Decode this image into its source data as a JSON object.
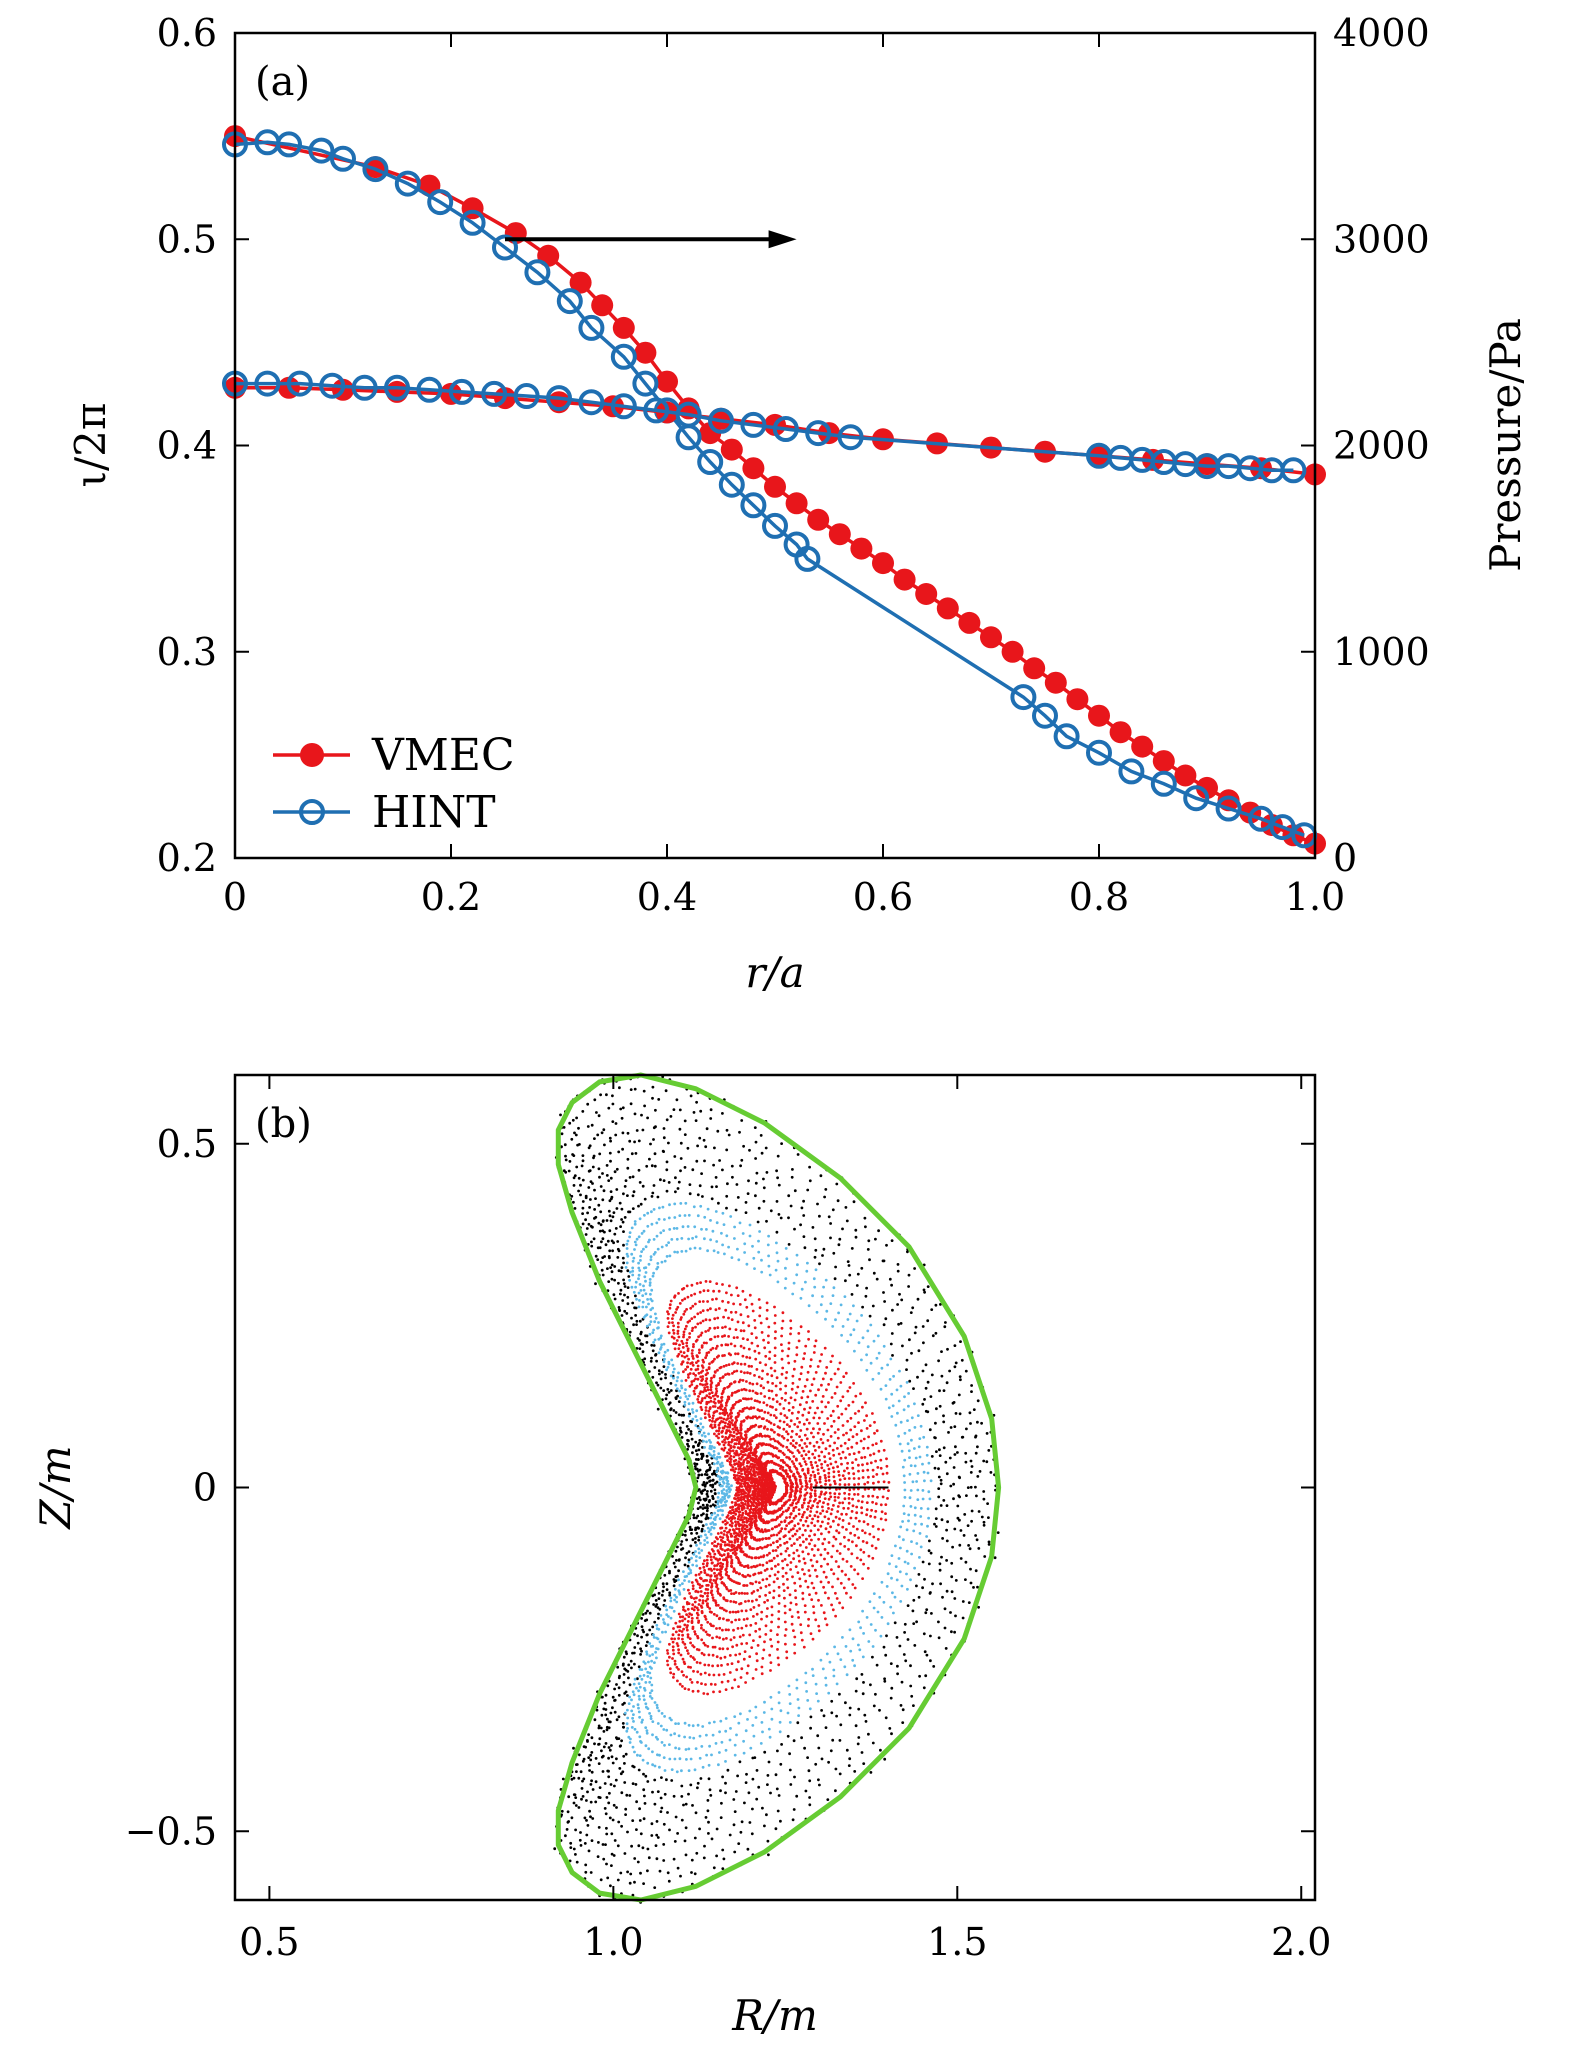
{
  "chart_data": [
    {
      "panel": "(a)",
      "type": "line",
      "xlabel": "r/a",
      "ylabel": "ι/2π",
      "y2label": "Pressure/Pa",
      "xlim": [
        0,
        1.0
      ],
      "ylim": [
        0.2,
        0.6
      ],
      "y2lim": [
        0,
        4000
      ],
      "xticks": [
        "0",
        "0.2",
        "0.4",
        "0.6",
        "0.8",
        "1.0"
      ],
      "yticks": [
        "0.2",
        "0.3",
        "0.4",
        "0.5",
        "0.6"
      ],
      "y2ticks": [
        "0",
        "1000",
        "2000",
        "3000",
        "4000"
      ],
      "legend": {
        "position": "lower-left",
        "entries": [
          "VMEC",
          "HINT"
        ]
      },
      "colors": {
        "VMEC": "#e8161b",
        "HINT": "#1f6fb2"
      },
      "arrow": {
        "from": [
          0.25,
          3000
        ],
        "to": [
          0.52,
          3000
        ],
        "axis": "right"
      },
      "series": [
        {
          "name": "VMEC",
          "quantity": "pressure",
          "axis": "right",
          "x": [
            0.0,
            0.13,
            0.18,
            0.22,
            0.26,
            0.29,
            0.32,
            0.34,
            0.36,
            0.38,
            0.4,
            0.42,
            0.44,
            0.46,
            0.48,
            0.5,
            0.52,
            0.54,
            0.56,
            0.58,
            0.6,
            0.62,
            0.64,
            0.66,
            0.68,
            0.7,
            0.72,
            0.74,
            0.76,
            0.78,
            0.8,
            0.82,
            0.84,
            0.86,
            0.88,
            0.9,
            0.92,
            0.94,
            0.96,
            0.98,
            1.0
          ],
          "y": [
            3500,
            3350,
            3260,
            3150,
            3030,
            2920,
            2790,
            2680,
            2570,
            2450,
            2310,
            2180,
            2060,
            1980,
            1890,
            1800,
            1720,
            1640,
            1570,
            1500,
            1430,
            1350,
            1280,
            1210,
            1140,
            1070,
            1000,
            920,
            850,
            770,
            690,
            610,
            540,
            470,
            400,
            340,
            280,
            220,
            160,
            110,
            70
          ]
        },
        {
          "name": "HINT",
          "quantity": "pressure",
          "axis": "right",
          "x": [
            0.0,
            0.03,
            0.05,
            0.08,
            0.1,
            0.13,
            0.16,
            0.19,
            0.22,
            0.25,
            0.28,
            0.31,
            0.33,
            0.36,
            0.38,
            0.4,
            0.42,
            0.44,
            0.46,
            0.48,
            0.5,
            0.52,
            0.53,
            0.73,
            0.75,
            0.77,
            0.8,
            0.83,
            0.86,
            0.89,
            0.92,
            0.95,
            0.97,
            0.99
          ],
          "y": [
            3460,
            3470,
            3460,
            3430,
            3390,
            3340,
            3270,
            3180,
            3080,
            2960,
            2840,
            2700,
            2570,
            2430,
            2300,
            2170,
            2040,
            1920,
            1810,
            1710,
            1610,
            1520,
            1450,
            780,
            690,
            590,
            510,
            420,
            360,
            290,
            240,
            190,
            150,
            110
          ]
        },
        {
          "name": "VMEC",
          "quantity": "iota",
          "axis": "left",
          "x": [
            0.0,
            0.05,
            0.1,
            0.15,
            0.2,
            0.25,
            0.3,
            0.35,
            0.4,
            0.45,
            0.5,
            0.55,
            0.6,
            0.65,
            0.7,
            0.75,
            0.8,
            0.85,
            0.9,
            0.95,
            1.0
          ],
          "y": [
            0.428,
            0.428,
            0.427,
            0.426,
            0.425,
            0.423,
            0.421,
            0.419,
            0.416,
            0.413,
            0.41,
            0.406,
            0.403,
            0.401,
            0.399,
            0.397,
            0.395,
            0.393,
            0.391,
            0.389,
            0.386
          ]
        },
        {
          "name": "HINT",
          "quantity": "iota",
          "axis": "left",
          "x": [
            0.0,
            0.03,
            0.06,
            0.09,
            0.12,
            0.15,
            0.18,
            0.21,
            0.24,
            0.27,
            0.3,
            0.33,
            0.36,
            0.39,
            0.42,
            0.45,
            0.48,
            0.51,
            0.54,
            0.57,
            0.8,
            0.82,
            0.84,
            0.86,
            0.88,
            0.9,
            0.92,
            0.94,
            0.96,
            0.98
          ],
          "y": [
            0.43,
            0.43,
            0.43,
            0.429,
            0.428,
            0.428,
            0.427,
            0.426,
            0.425,
            0.424,
            0.423,
            0.421,
            0.419,
            0.417,
            0.415,
            0.412,
            0.41,
            0.408,
            0.406,
            0.404,
            0.395,
            0.394,
            0.393,
            0.392,
            0.391,
            0.39,
            0.39,
            0.389,
            0.388,
            0.388
          ]
        }
      ]
    },
    {
      "panel": "(b)",
      "type": "scatter",
      "xlabel": "R/m",
      "ylabel": "Z/m",
      "xlim": [
        0.45,
        2.02
      ],
      "ylim": [
        -0.6,
        0.6
      ],
      "xticks": [
        "0.5",
        "1.0",
        "1.5",
        "2.0"
      ],
      "yticks": [
        "−0.5",
        "0",
        "0.5"
      ],
      "colors": {
        "boundary": "#66cc33",
        "outer_points": "#000000",
        "mid_points": "#5cb8e6",
        "core_points": "#e8161b"
      },
      "series": [
        {
          "name": "boundary",
          "kind": "closed-curve",
          "x": [
            0.98,
            1.04,
            1.12,
            1.22,
            1.33,
            1.43,
            1.51,
            1.55,
            1.56,
            1.55,
            1.51,
            1.43,
            1.33,
            1.22,
            1.12,
            1.04,
            0.98,
            0.94,
            0.92,
            0.92,
            0.94,
            0.98,
            1.03,
            1.08,
            1.11,
            1.12,
            1.11,
            1.08,
            1.03,
            0.98,
            0.94,
            0.92,
            0.92,
            0.94
          ],
          "y": [
            -0.59,
            -0.6,
            -0.58,
            -0.53,
            -0.45,
            -0.35,
            -0.22,
            -0.1,
            0.0,
            0.1,
            0.22,
            0.35,
            0.45,
            0.53,
            0.58,
            0.6,
            0.59,
            0.56,
            0.52,
            0.47,
            0.4,
            0.3,
            0.2,
            0.1,
            0.04,
            0.0,
            -0.04,
            -0.1,
            -0.2,
            -0.3,
            -0.4,
            -0.47,
            -0.52,
            -0.56
          ]
        },
        {
          "name": "outer_points",
          "kind": "surfaces",
          "scale_outer": 1.0,
          "scale_inner": 0.72
        },
        {
          "name": "mid_points",
          "kind": "surfaces",
          "scale_outer": 0.69,
          "scale_inner": 0.58
        },
        {
          "name": "core_points",
          "kind": "surfaces",
          "scale_outer": 0.5,
          "scale_inner": 0.04
        }
      ],
      "magnetic_axis": {
        "R": 1.24,
        "Z": 0.0
      }
    }
  ]
}
